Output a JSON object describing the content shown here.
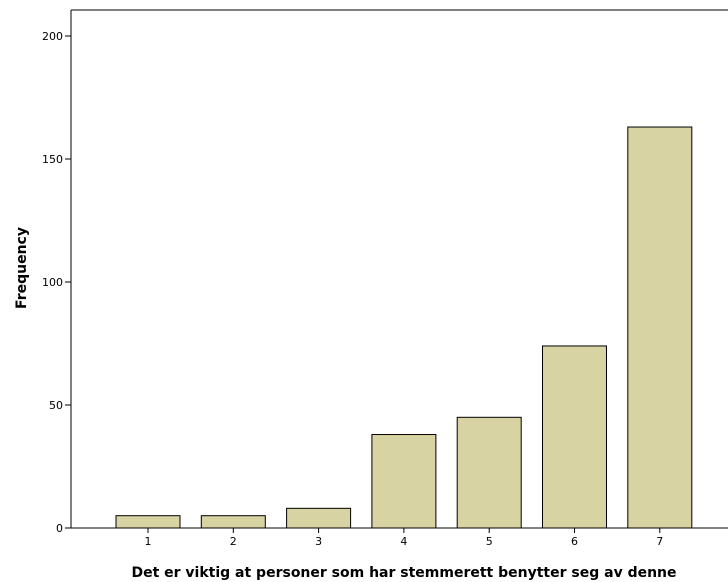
{
  "chart_data": {
    "type": "bar",
    "categories": [
      "1",
      "2",
      "3",
      "4",
      "5",
      "6",
      "7"
    ],
    "values": [
      5,
      5,
      8,
      38,
      45,
      74,
      163
    ],
    "xlabel": "Det er viktig at personer som har stemmerett benytter seg av denne",
    "ylabel": "Frequency",
    "ylim": [
      0,
      210
    ],
    "yticks": [
      0,
      50,
      100,
      150,
      200
    ],
    "grid": false,
    "legend": "none",
    "colors": {
      "bar_fill": "#d8d3a2",
      "bar_stroke": "#000000",
      "axis": "#000000",
      "background": "#ffffff"
    }
  }
}
